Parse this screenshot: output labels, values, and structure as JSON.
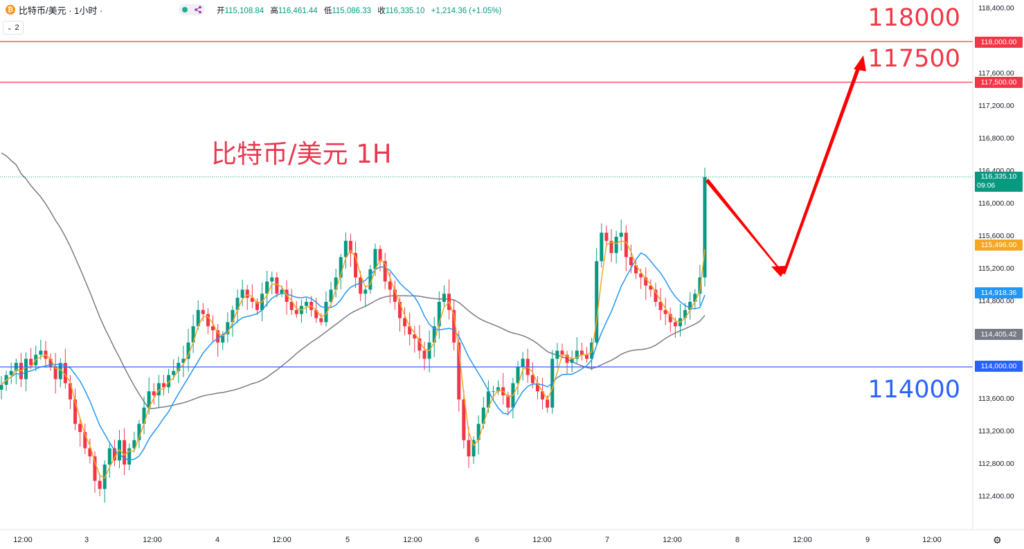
{
  "header": {
    "symbol_title": "比特币/美元 · 1小时 ·",
    "btc_icon": "bitcoin-icon",
    "ohlc": {
      "open_label": "开",
      "open": "115,108.84",
      "high_label": "高",
      "high": "116,461.44",
      "low_label": "低",
      "low": "115,086.33",
      "close_label": "收",
      "close": "116,335.10",
      "change": "+1,214.36 (+1.05%)"
    },
    "interval_count": "2",
    "interval_icon": "chevron-down-icon"
  },
  "annotations": {
    "title": "比特币/美元 1H",
    "level_118000": "118000",
    "level_117500": "117500",
    "level_114000": "114000"
  },
  "price_tags": {
    "line_118000": "118,000.00",
    "line_117500": "117,500.00",
    "last": "116,335.10",
    "countdown": "09:06",
    "ma_fast": "115,496.00",
    "ma_mid": "114,918.36",
    "ma_slow": "114,405.42",
    "line_114000": "114,000.00"
  },
  "colors": {
    "up": "#089981",
    "down": "#f23645",
    "ma_fast": "#f5a623",
    "ma_mid": "#2196f3",
    "ma_slow": "#787b86",
    "red_line": "#f23645",
    "blue_line": "#2962ff",
    "arrow": "#ff0000"
  },
  "chart_data": {
    "type": "candlestick",
    "title": "比特币/美元 1H",
    "interval": "1小时",
    "ylim": [
      112000,
      118600
    ],
    "y_ticks": [
      112400,
      112800,
      113200,
      113600,
      114000,
      114400,
      114800,
      115200,
      115600,
      116000,
      116400,
      116800,
      117200,
      117600,
      118000,
      118400
    ],
    "y_tick_labels": [
      "112,400.00",
      "112,800.00",
      "113,200.00",
      "113,600.00",
      "114,000.00",
      "114,400.00",
      "114,800.00",
      "115,200.00",
      "115,600.00",
      "116,000.00",
      "116,400.00",
      "116,800.00",
      "117,200.00",
      "117,600.00",
      "118,000.00",
      "118,400.00"
    ],
    "x_tick_labels": [
      "12:00",
      "3",
      "12:00",
      "4",
      "12:00",
      "5",
      "12:00",
      "6",
      "12:00",
      "7",
      "12:00",
      "8",
      "12:00",
      "9",
      "12:00"
    ],
    "horizontal_levels": [
      118000,
      117500,
      114000
    ],
    "last_price": 116335.1,
    "candles_close": [
      113780,
      113900,
      113950,
      114050,
      113850,
      114100,
      114020,
      114150,
      114200,
      114100,
      114000,
      113850,
      114050,
      113800,
      113600,
      113300,
      113200,
      113000,
      112900,
      112600,
      112500,
      112800,
      113000,
      112850,
      113100,
      112800,
      113000,
      113100,
      113300,
      113500,
      113700,
      113650,
      113800,
      113750,
      113900,
      113950,
      114050,
      114100,
      114300,
      114500,
      114700,
      114650,
      114500,
      114450,
      114300,
      114400,
      114550,
      114700,
      114850,
      114950,
      114850,
      114800,
      114700,
      114900,
      115050,
      115100,
      114900,
      114950,
      114800,
      114700,
      114650,
      114750,
      114800,
      114700,
      114600,
      114550,
      114800,
      114950,
      115100,
      115350,
      115550,
      115400,
      115100,
      114900,
      114950,
      115200,
      115450,
      115300,
      115050,
      114950,
      114800,
      114600,
      114500,
      114400,
      114350,
      114200,
      114100,
      114300,
      114500,
      114800,
      114900,
      114700,
      114300,
      113600,
      113100,
      112900,
      113100,
      113300,
      113500,
      113700,
      113700,
      113750,
      113650,
      113500,
      113800,
      114000,
      114100,
      113900,
      113800,
      113700,
      113600,
      113500,
      114100,
      114200,
      114150,
      114050,
      114100,
      114200,
      114150,
      114100,
      114300,
      115300,
      115650,
      115550,
      115400,
      115600,
      115650,
      115350,
      115250,
      115150,
      115100,
      115000,
      114950,
      114800,
      114700,
      114650,
      114550,
      114500,
      114600,
      114700,
      114800,
      114900,
      115100,
      116335
    ]
  }
}
